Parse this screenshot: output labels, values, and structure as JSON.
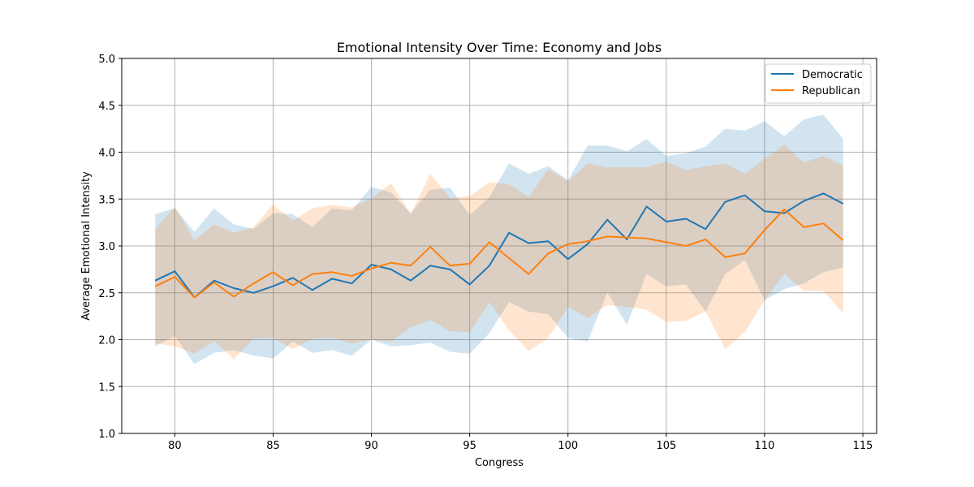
{
  "chart_data": {
    "type": "line",
    "title": "Emotional Intensity Over Time: Economy and Jobs",
    "xlabel": "Congress",
    "ylabel": "Average Emotional Intensity",
    "xlim": [
      77.3,
      115.7
    ],
    "ylim": [
      1.0,
      5.0
    ],
    "xticks": [
      80,
      85,
      90,
      95,
      100,
      105,
      110,
      115
    ],
    "yticks": [
      1.0,
      1.5,
      2.0,
      2.5,
      3.0,
      3.5,
      4.0,
      4.5,
      5.0
    ],
    "grid": true,
    "legend_position": "top-right",
    "x": [
      79,
      80,
      81,
      82,
      83,
      84,
      85,
      86,
      87,
      88,
      89,
      90,
      91,
      92,
      93,
      94,
      95,
      96,
      97,
      98,
      99,
      100,
      101,
      102,
      103,
      104,
      105,
      106,
      107,
      108,
      109,
      110,
      111,
      112,
      113,
      114
    ],
    "series": [
      {
        "name": "Democratic",
        "color": "#1f77b4",
        "values": [
          2.63,
          2.73,
          2.45,
          2.63,
          2.55,
          2.5,
          2.57,
          2.66,
          2.53,
          2.65,
          2.6,
          2.8,
          2.75,
          2.63,
          2.79,
          2.75,
          2.59,
          2.79,
          3.14,
          3.03,
          3.05,
          2.86,
          3.02,
          3.28,
          3.07,
          3.42,
          3.26,
          3.29,
          3.18,
          3.47,
          3.54,
          3.37,
          3.35,
          3.48,
          3.56,
          3.45
        ],
        "upper": [
          3.34,
          3.4,
          3.15,
          3.4,
          3.23,
          3.18,
          3.35,
          3.34,
          3.2,
          3.4,
          3.38,
          3.63,
          3.57,
          3.35,
          3.6,
          3.62,
          3.33,
          3.52,
          3.88,
          3.77,
          3.85,
          3.7,
          4.07,
          4.07,
          4.01,
          4.14,
          3.96,
          3.99,
          4.06,
          4.25,
          4.23,
          4.33,
          4.17,
          4.35,
          4.4,
          4.14
        ],
        "lower": [
          1.93,
          2.04,
          1.74,
          1.86,
          1.89,
          1.83,
          1.8,
          1.98,
          1.86,
          1.89,
          1.83,
          2.0,
          1.93,
          1.94,
          1.97,
          1.87,
          1.85,
          2.07,
          2.4,
          2.3,
          2.27,
          2.02,
          1.98,
          2.5,
          2.16,
          2.7,
          2.57,
          2.59,
          2.3,
          2.7,
          2.85,
          2.42,
          2.54,
          2.6,
          2.72,
          2.77
        ]
      },
      {
        "name": "Republican",
        "color": "#ff7f0e",
        "values": [
          2.57,
          2.67,
          2.45,
          2.61,
          2.46,
          2.6,
          2.72,
          2.58,
          2.7,
          2.72,
          2.68,
          2.76,
          2.82,
          2.79,
          2.99,
          2.79,
          2.81,
          3.04,
          2.87,
          2.7,
          2.92,
          3.02,
          3.05,
          3.1,
          3.09,
          3.08,
          3.04,
          3.0,
          3.07,
          2.88,
          2.92,
          3.17,
          3.39,
          3.2,
          3.24,
          3.06
        ],
        "upper": [
          3.18,
          3.42,
          3.06,
          3.23,
          3.14,
          3.2,
          3.44,
          3.27,
          3.4,
          3.44,
          3.41,
          3.51,
          3.67,
          3.34,
          3.77,
          3.51,
          3.53,
          3.68,
          3.66,
          3.52,
          3.82,
          3.69,
          3.88,
          3.84,
          3.84,
          3.84,
          3.9,
          3.81,
          3.85,
          3.88,
          3.77,
          3.93,
          4.08,
          3.89,
          3.96,
          3.86
        ],
        "lower": [
          1.96,
          1.93,
          1.85,
          1.99,
          1.79,
          2.01,
          2.02,
          1.9,
          2.01,
          2.02,
          1.96,
          2.0,
          1.98,
          2.13,
          2.21,
          2.09,
          2.08,
          2.4,
          2.1,
          1.88,
          2.02,
          2.35,
          2.23,
          2.37,
          2.35,
          2.32,
          2.19,
          2.2,
          2.3,
          1.9,
          2.08,
          2.42,
          2.7,
          2.52,
          2.52,
          2.28
        ]
      }
    ]
  }
}
